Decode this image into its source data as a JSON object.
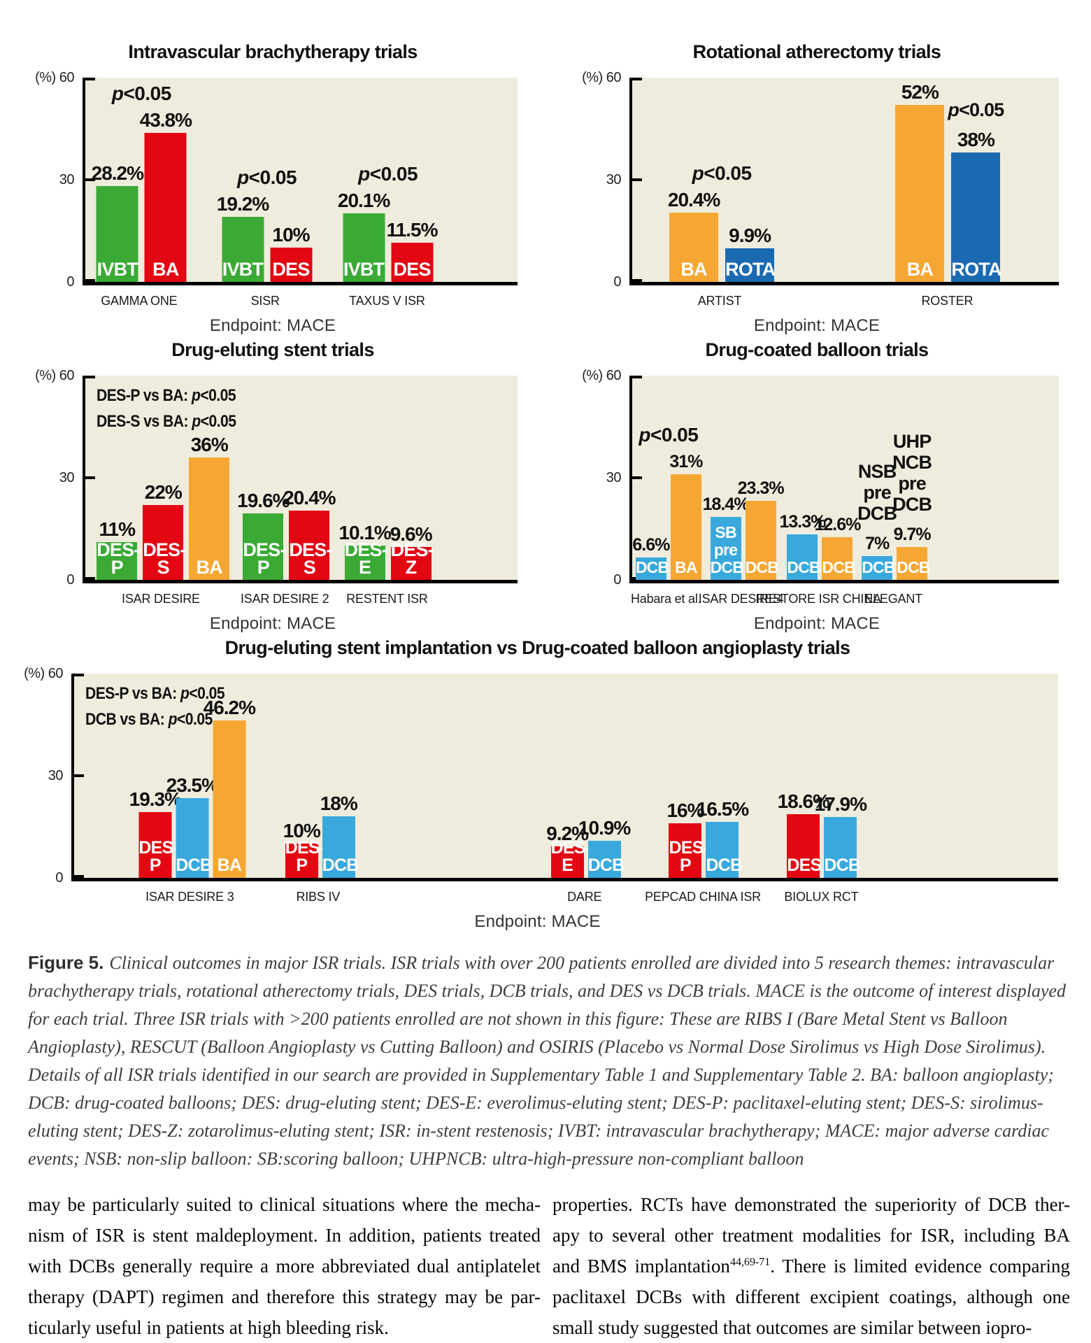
{
  "figure": {
    "caption_label": "Figure 5.",
    "caption_lines": [
      "Clinical outcomes in major ISR trials. ISR trials with over 200 patients enrolled are divided into 5 research themes: intravascular",
      "brachytherapy trials, rotational atherectomy trials, DES trials, DCB trials, and DES vs DCB trials. MACE is the outcome of interest displayed",
      "for each trial. Three ISR trials with >200 patients enrolled are not shown in this figure: These are RIBS I (Bare Metal Stent vs Balloon",
      "Angioplasty), RESCUT (Balloon Angioplasty vs Cutting Balloon) and OSIRIS (Placebo vs Normal Dose Sirolimus vs High Dose Sirolimus).",
      "Details of all ISR trials identified in our search are provided in Supplementary Table 1 and Supplementary Table 2. BA: balloon angioplasty;",
      "DCB: drug-coated balloons; DES: drug-eluting stent; DES-E: everolimus-eluting stent; DES-P: paclitaxel-eluting stent; DES-S: sirolimus-",
      "eluting stent; DES-Z: zotarolimus-eluting stent; ISR: in-stent restenosis; IVBT: intravascular brachytherapy; MACE: major adverse cardiac",
      "events; NSB: non-slip balloon: SB:scoring balloon; UHPNCB: ultra-high-pressure non-compliant balloon"
    ]
  },
  "body_columns": {
    "left": [
      {
        "justify": true,
        "segments": [
          {
            "t": "may be particularly suited to clinical situations where the mecha-"
          }
        ]
      },
      {
        "justify": true,
        "segments": [
          {
            "t": "nism of ISR is stent maldeployment. In addition, patients treated"
          }
        ]
      },
      {
        "justify": true,
        "segments": [
          {
            "t": "with DCBs generally require a more abbreviated dual antiplatelet"
          }
        ]
      },
      {
        "justify": true,
        "segments": [
          {
            "t": "therapy (DAPT) regimen and therefore this strategy may be par-"
          }
        ]
      },
      {
        "justify": false,
        "segments": [
          {
            "t": "ticularly useful in patients at high bleeding risk."
          }
        ]
      }
    ],
    "right": [
      {
        "justify": true,
        "segments": [
          {
            "t": "properties. RCTs have demonstrated the superiority of DCB ther-"
          }
        ]
      },
      {
        "justify": true,
        "segments": [
          {
            "t": "apy to several other treatment modalities for ISR, including BA"
          }
        ]
      },
      {
        "justify": true,
        "segments": [
          {
            "t": "and BMS implantation"
          },
          {
            "t": "44,69-71",
            "sup": true
          },
          {
            "t": ". There is limited evidence comparing"
          }
        ]
      },
      {
        "justify": true,
        "segments": [
          {
            "t": "paclitaxel DCBs with different excipient coatings, although one"
          }
        ]
      },
      {
        "justify": false,
        "segments": [
          {
            "t": "small study suggested that outcomes are similar between iopro-"
          }
        ]
      }
    ]
  },
  "colors": {
    "green": "#3AAA35",
    "red": "#E30613",
    "orange": "#F6A733",
    "blue": "#1A6AB1",
    "lightblue": "#39A9DD",
    "plot_bg": "#EFECDD",
    "axis": "#000000",
    "chart_text": "#111111"
  },
  "axis_labels": {
    "top": "(%) 60",
    "mid": "30",
    "zero": "0"
  },
  "chart_data": [
    {
      "id": "ivbt",
      "type": "bar",
      "title": "Intravascular brachytherapy trials",
      "endpoint": "Endpoint: MACE",
      "ylabel": "(%)",
      "ylim": [
        0,
        60
      ],
      "corner_notes": [],
      "groups": [
        {
          "name": "GAMMA ONE",
          "cx": 0.13,
          "p": "p<0.05",
          "bars": [
            {
              "label": "IVBT",
              "value": 28.2,
              "value_label": "28.2%",
              "color": "green"
            },
            {
              "label": "BA",
              "value": 43.8,
              "value_label": "43.8%",
              "color": "red"
            }
          ]
        },
        {
          "name": "SISR",
          "cx": 0.42,
          "p": "p<0.05",
          "bars": [
            {
              "label": "IVBT",
              "value": 19.2,
              "value_label": "19.2%",
              "color": "green"
            },
            {
              "label": "DES",
              "value": 10,
              "value_label": "10%",
              "color": "red"
            }
          ]
        },
        {
          "name": "TAXUS V ISR",
          "cx": 0.7,
          "p": "p<0.05",
          "bars": [
            {
              "label": "IVBT",
              "value": 20.1,
              "value_label": "20.1%",
              "color": "green"
            },
            {
              "label": "DES",
              "value": 11.5,
              "value_label": "11.5%",
              "color": "red"
            }
          ]
        }
      ]
    },
    {
      "id": "rota",
      "type": "bar",
      "title": "Rotational atherectomy trials",
      "endpoint": "Endpoint: MACE",
      "ylabel": "(%)",
      "ylim": [
        0,
        60
      ],
      "corner_notes": [],
      "groups": [
        {
          "name": "ARTIST",
          "cx": 0.21,
          "p": "p<0.05",
          "bars": [
            {
              "label": "BA",
              "value": 20.4,
              "value_label": "20.4%",
              "color": "orange"
            },
            {
              "label": "ROTA",
              "value": 9.9,
              "value_label": "9.9%",
              "color": "blue"
            }
          ]
        },
        {
          "name": "ROSTER",
          "cx": 0.74,
          "bars": [
            {
              "label": "BA",
              "value": 52,
              "value_label": "52%",
              "color": "orange"
            },
            {
              "label": "ROTA",
              "value": 38,
              "value_label": "38%",
              "color": "blue",
              "above": [
                "p<0.05"
              ]
            }
          ]
        }
      ]
    },
    {
      "id": "des",
      "type": "bar",
      "title": "Drug-eluting stent trials",
      "endpoint": "Endpoint: MACE",
      "ylabel": "(%)",
      "ylim": [
        0,
        60
      ],
      "corner_notes": [
        "DES-P vs BA: p<0.05",
        "DES-S vs BA: p<0.05"
      ],
      "groups": [
        {
          "name": "ISAR DESIRE",
          "cx": 0.18,
          "bars": [
            {
              "label": "DES-P",
              "value": 11,
              "value_label": "11%",
              "color": "green"
            },
            {
              "label": "DES-S",
              "value": 22,
              "value_label": "22%",
              "color": "red"
            },
            {
              "label": "BA",
              "value": 36,
              "value_label": "36%",
              "color": "orange"
            }
          ]
        },
        {
          "name": "ISAR DESIRE 2",
          "cx": 0.465,
          "bars": [
            {
              "label": "DES-P",
              "value": 19.6,
              "value_label": "19.6%",
              "color": "green"
            },
            {
              "label": "DES-S",
              "value": 20.4,
              "value_label": "20.4%",
              "color": "red"
            }
          ]
        },
        {
          "name": "RESTENT ISR",
          "cx": 0.7,
          "bars": [
            {
              "label": "DES-E",
              "value": 10.1,
              "value_label": "10.1%",
              "color": "green"
            },
            {
              "label": "DES-Z",
              "value": 9.6,
              "value_label": "9.6%",
              "color": "red"
            }
          ]
        }
      ]
    },
    {
      "id": "dcb",
      "type": "bar",
      "title": "Drug-coated balloon trials",
      "endpoint": "Endpoint: MACE",
      "ylabel": "(%)",
      "ylim": [
        0,
        60
      ],
      "corner_notes": [],
      "groups": [
        {
          "name": "Habara et al.",
          "cx": 0.085,
          "p": "p<0.05",
          "bars": [
            {
              "label": "DCB",
              "value": 6.6,
              "value_label": "6.6%",
              "color": "lightblue"
            },
            {
              "label": "BA",
              "value": 31,
              "value_label": "31%",
              "color": "orange"
            }
          ]
        },
        {
          "name": "ISAR DESIRE4",
          "cx": 0.26,
          "bars": [
            {
              "label": "SB\npre\nDCB",
              "value": 18.4,
              "value_label": "18.4%",
              "color": "lightblue"
            },
            {
              "label": "DCB",
              "value": 23.3,
              "value_label": "23.3%",
              "color": "orange"
            }
          ]
        },
        {
          "name": "RESTORE ISR CHINA",
          "cx": 0.44,
          "bars": [
            {
              "label": "DCB",
              "value": 13.3,
              "value_label": "13.3%",
              "color": "lightblue"
            },
            {
              "label": "DCB",
              "value": 12.6,
              "value_label": "12.6%",
              "color": "orange"
            }
          ]
        },
        {
          "name": "ELEGANT",
          "cx": 0.615,
          "bars": [
            {
              "label": "DCB",
              "value": 7,
              "value_label": "7%",
              "color": "lightblue",
              "above": [
                "NSB",
                "pre",
                "DCB"
              ]
            },
            {
              "label": "DCB",
              "value": 9.7,
              "value_label": "9.7%",
              "color": "orange",
              "above": [
                "UHP",
                "NCB",
                "pre",
                "DCB"
              ]
            }
          ]
        }
      ]
    },
    {
      "id": "desdcb",
      "type": "bar",
      "title": "Drug-eluting stent implantation vs Drug-coated balloon angioplasty trials",
      "endpoint": "Endpoint: MACE",
      "ylabel": "(%)",
      "ylim": [
        0,
        60
      ],
      "corner_notes": [
        "DES-P vs BA: p<0.05",
        "DCB vs BA: p<0.05"
      ],
      "groups": [
        {
          "name": "ISAR DESIRE 3",
          "cx": 0.12,
          "bars": [
            {
              "label": "DES-P",
              "value": 19.3,
              "value_label": "19.3%",
              "color": "red"
            },
            {
              "label": "DCB",
              "value": 23.5,
              "value_label": "23.5%",
              "color": "lightblue"
            },
            {
              "label": "BA",
              "value": 46.2,
              "value_label": "46.2%",
              "color": "orange"
            }
          ]
        },
        {
          "name": "RIBS IV",
          "cx": 0.25,
          "bars": [
            {
              "label": "DES-P",
              "value": 10,
              "value_label": "10%",
              "color": "red"
            },
            {
              "label": "DCB",
              "value": 18,
              "value_label": "18%",
              "color": "lightblue"
            }
          ]
        },
        {
          "name": "DARE",
          "cx": 0.52,
          "bars": [
            {
              "label": "DES-E",
              "value": 9.2,
              "value_label": "9.2%",
              "color": "red"
            },
            {
              "label": "DCB",
              "value": 10.9,
              "value_label": "10.9%",
              "color": "lightblue"
            }
          ]
        },
        {
          "name": "PEPCAD CHINA ISR",
          "cx": 0.64,
          "bars": [
            {
              "label": "DES-P",
              "value": 16,
              "value_label": "16%",
              "color": "red"
            },
            {
              "label": "DCB",
              "value": 16.5,
              "value_label": "16.5%",
              "color": "lightblue"
            }
          ]
        },
        {
          "name": "BIOLUX RCT",
          "cx": 0.76,
          "bars": [
            {
              "label": "DES",
              "value": 18.6,
              "value_label": "18.6%",
              "color": "red"
            },
            {
              "label": "DCB",
              "value": 17.9,
              "value_label": "17.9%",
              "color": "lightblue"
            }
          ]
        }
      ]
    }
  ]
}
